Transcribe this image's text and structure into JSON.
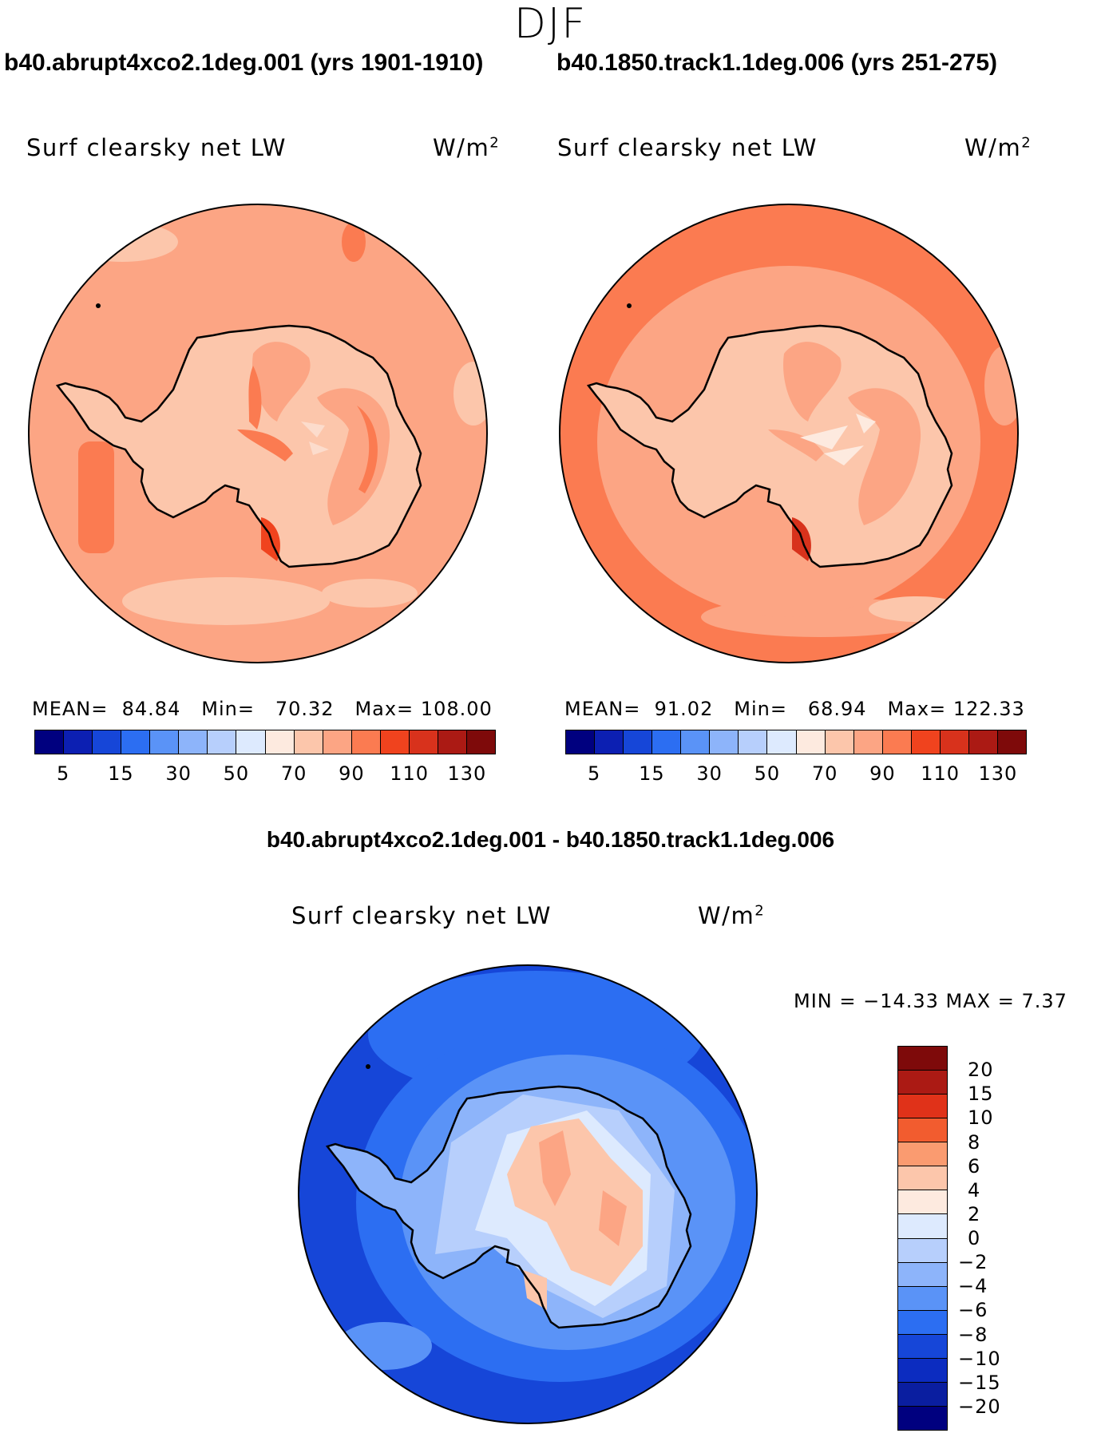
{
  "season": "DJF",
  "panels": [
    {
      "case_title": "b40.abrupt4xco2.1deg.001 (yrs 1901-1910)",
      "var_label": "Surf clearsky net LW",
      "units_base": "W/m",
      "units_sup": "2",
      "stats": {
        "mean_label": "MEAN=",
        "mean": "84.84",
        "min_label": "Min=",
        "min": "70.32",
        "max_label": "Max=",
        "max": "108.00"
      },
      "colors": {
        "ocean": "#fca584",
        "ice": "#fcc6ab",
        "warm": "#fb7b51",
        "hot": "#f0431e",
        "pale": "#fcdccc"
      }
    },
    {
      "case_title": "b40.1850.track1.1deg.006 (yrs 251-275)",
      "var_label": "Surf clearsky net LW",
      "units_base": "W/m",
      "units_sup": "2",
      "stats": {
        "mean_label": "MEAN=",
        "mean": "91.02",
        "min_label": "Min=",
        "min": "68.94",
        "max_label": "Max=",
        "max": "122.33"
      },
      "colors": {
        "ocean": "#fb7b51",
        "ice": "#fcc6ab",
        "warm": "#fca584",
        "hot": "#d8321c",
        "pale": "#fdeadf"
      }
    }
  ],
  "top_colorbar": {
    "colors": [
      "#00007f",
      "#0c1fb2",
      "#1646d8",
      "#2c6ef2",
      "#5a93f7",
      "#8db4fa",
      "#b7cffc",
      "#ddeafe",
      "#fdeadf",
      "#fcc6ab",
      "#fca584",
      "#fb7b51",
      "#f0431e",
      "#d8321c",
      "#ab1a14",
      "#7e0a0a"
    ],
    "labels": [
      "5",
      "15",
      "30",
      "50",
      "70",
      "90",
      "110",
      "130"
    ]
  },
  "diff": {
    "title": "b40.abrupt4xco2.1deg.001 - b40.1850.track1.1deg.006",
    "var_label": "Surf clearsky net LW",
    "units_base": "W/m",
    "units_sup": "2",
    "minmax_text": "MIN = −14.33 MAX =    7.37",
    "colors": {
      "ocean": "#1646d8",
      "mid": "#2c6ef2",
      "light": "#5a93f7",
      "lighter": "#8db4fa",
      "ice": "#b7cffc",
      "paleice": "#ddeafe",
      "warm": "#fcc6ab",
      "warmer": "#fca584"
    }
  },
  "diff_colorbar": {
    "colors": [
      "#7e0a0a",
      "#ab1a14",
      "#e03219",
      "#f25c2f",
      "#fa9b70",
      "#fcc6ab",
      "#fdeadf",
      "#ddeafe",
      "#b7cffc",
      "#8db4fa",
      "#5a93f7",
      "#2c6ef2",
      "#1646d8",
      "#0c2cc0",
      "#0a1ea0",
      "#00007f"
    ],
    "labels": [
      "20",
      "15",
      "10",
      "8",
      "6",
      "4",
      "2",
      "0",
      "−2",
      "−4",
      "−6",
      "−8",
      "−10",
      "−15",
      "−20"
    ]
  }
}
